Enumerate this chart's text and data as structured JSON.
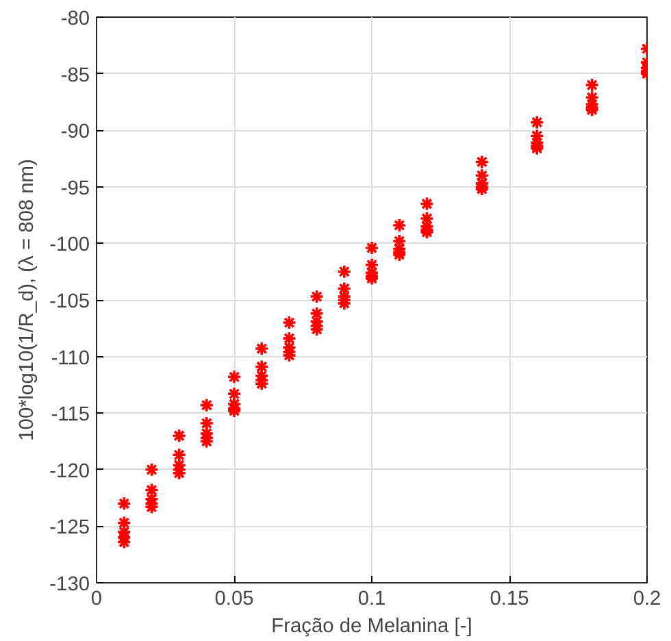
{
  "chart_data": {
    "type": "scatter",
    "xlabel": "Fração de Melanina [-]",
    "ylabel": "100*log10(1/R_d), (λ = 808 nm)",
    "x": [
      0.01,
      0.01,
      0.01,
      0.01,
      0.01,
      0.02,
      0.02,
      0.02,
      0.02,
      0.02,
      0.03,
      0.03,
      0.03,
      0.03,
      0.03,
      0.04,
      0.04,
      0.04,
      0.04,
      0.04,
      0.05,
      0.05,
      0.05,
      0.05,
      0.05,
      0.06,
      0.06,
      0.06,
      0.06,
      0.06,
      0.07,
      0.07,
      0.07,
      0.07,
      0.07,
      0.08,
      0.08,
      0.08,
      0.08,
      0.08,
      0.09,
      0.09,
      0.09,
      0.09,
      0.09,
      0.1,
      0.1,
      0.1,
      0.1,
      0.1,
      0.11,
      0.11,
      0.11,
      0.11,
      0.11,
      0.12,
      0.12,
      0.12,
      0.12,
      0.12,
      0.14,
      0.14,
      0.14,
      0.14,
      0.14,
      0.16,
      0.16,
      0.16,
      0.16,
      0.16,
      0.18,
      0.18,
      0.18,
      0.18,
      0.18,
      0.2,
      0.2,
      0.2,
      0.2,
      0.2
    ],
    "values": [
      -123,
      -124.7,
      -125.5,
      -126,
      -126.4,
      -120,
      -121.8,
      -122.6,
      -123,
      -123.3,
      -117,
      -118.7,
      -119.6,
      -120,
      -120.3,
      -114.3,
      -115.9,
      -116.8,
      -117.2,
      -117.5,
      -111.8,
      -113.3,
      -114.2,
      -114.6,
      -114.8,
      -109.3,
      -110.9,
      -111.7,
      -112.1,
      -112.4,
      -107,
      -108.4,
      -109.2,
      -109.6,
      -109.9,
      -104.7,
      -106.2,
      -106.9,
      -107.3,
      -107.6,
      -102.5,
      -104,
      -104.7,
      -105,
      -105.3,
      -100.4,
      -101.9,
      -102.6,
      -102.9,
      -103.1,
      -98.4,
      -99.8,
      -100.5,
      -100.8,
      -101,
      -96.5,
      -97.8,
      -98.5,
      -98.8,
      -99,
      -92.8,
      -94,
      -94.7,
      -95,
      -95.2,
      -89.3,
      -90.5,
      -91.1,
      -91.4,
      -91.6,
      -86,
      -87.1,
      -87.7,
      -88,
      -88.2,
      -82.8,
      -84,
      -84.5,
      -84.8,
      -85
    ],
    "color": "#ff0000",
    "marker": "cross",
    "xlim": [
      0,
      0.2
    ],
    "xticks": [
      0,
      0.05,
      0.1,
      0.15,
      0.2
    ],
    "ylim": [
      -130,
      -80
    ],
    "yticks": [
      -130,
      -125,
      -120,
      -115,
      -110,
      -105,
      -100,
      -95,
      -90,
      -85,
      -80
    ],
    "grid": true
  }
}
